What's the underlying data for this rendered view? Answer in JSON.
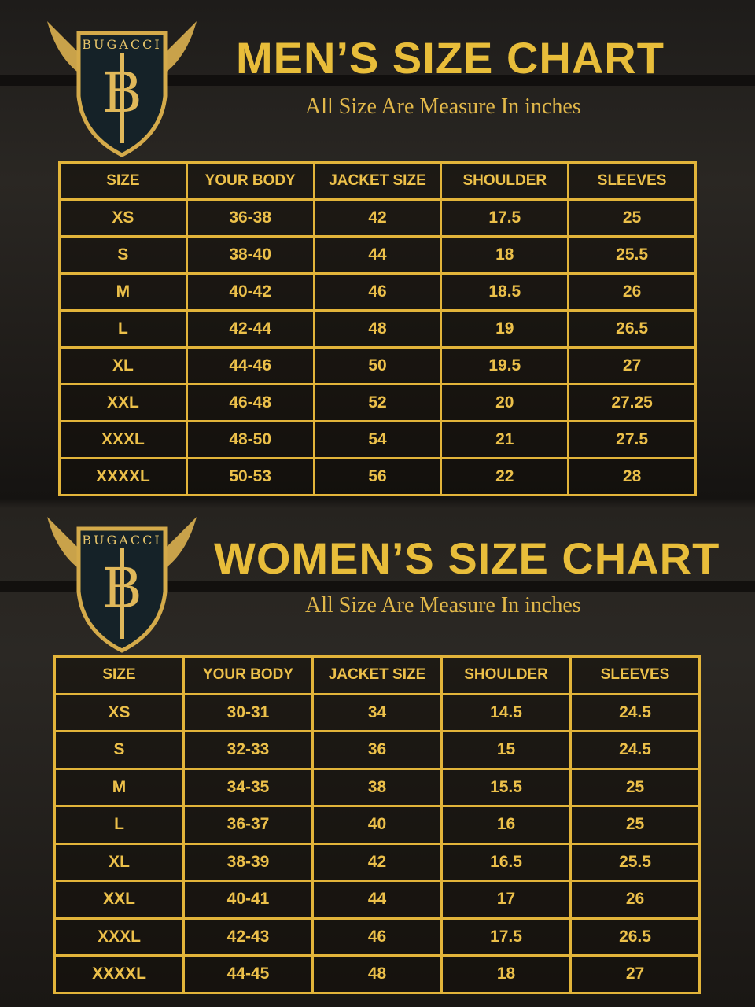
{
  "brand": {
    "name": "BUGACCI",
    "monogram": "HB"
  },
  "colors": {
    "gold": "#e8bd3a",
    "background": "#1e1c1a"
  },
  "men": {
    "title": "MEN’S SIZE CHART",
    "subtitle": "All Size Are Measure In inches",
    "headers": [
      "SIZE",
      "YOUR BODY",
      "JACKET SIZE",
      "SHOULDER",
      "SLEEVES"
    ],
    "rows": [
      [
        "XS",
        "36-38",
        "42",
        "17.5",
        "25"
      ],
      [
        "S",
        "38-40",
        "44",
        "18",
        "25.5"
      ],
      [
        "M",
        "40-42",
        "46",
        "18.5",
        "26"
      ],
      [
        "L",
        "42-44",
        "48",
        "19",
        "26.5"
      ],
      [
        "XL",
        "44-46",
        "50",
        "19.5",
        "27"
      ],
      [
        "XXL",
        "46-48",
        "52",
        "20",
        "27.25"
      ],
      [
        "XXXL",
        "48-50",
        "54",
        "21",
        "27.5"
      ],
      [
        "XXXXL",
        "50-53",
        "56",
        "22",
        "28"
      ]
    ]
  },
  "women": {
    "title": "WOMEN’S SIZE CHART",
    "subtitle": "All Size Are Measure In inches",
    "headers": [
      "SIZE",
      "YOUR BODY",
      "JACKET SIZE",
      "SHOULDER",
      "SLEEVES"
    ],
    "rows": [
      [
        "XS",
        "30-31",
        "34",
        "14.5",
        "24.5"
      ],
      [
        "S",
        "32-33",
        "36",
        "15",
        "24.5"
      ],
      [
        "M",
        "34-35",
        "38",
        "15.5",
        "25"
      ],
      [
        "L",
        "36-37",
        "40",
        "16",
        "25"
      ],
      [
        "XL",
        "38-39",
        "42",
        "16.5",
        "25.5"
      ],
      [
        "XXL",
        "40-41",
        "44",
        "17",
        "26"
      ],
      [
        "XXXL",
        "42-43",
        "46",
        "17.5",
        "26.5"
      ],
      [
        "XXXXL",
        "44-45",
        "48",
        "18",
        "27"
      ]
    ]
  }
}
